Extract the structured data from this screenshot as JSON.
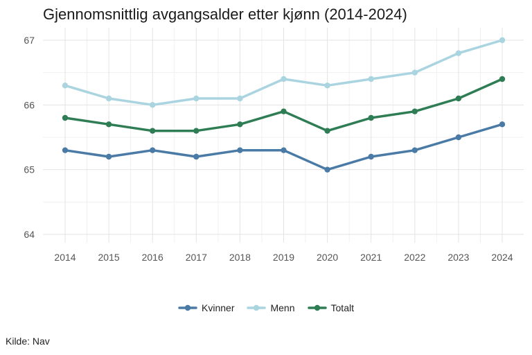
{
  "chart_data": {
    "type": "line",
    "title": "Gjennomsnittlig avgangsalder etter kjønn (2014-2024)",
    "x": [
      2014,
      2015,
      2016,
      2017,
      2018,
      2019,
      2020,
      2021,
      2022,
      2023,
      2024
    ],
    "series": [
      {
        "name": "Kvinner",
        "color": "#4a7aa6",
        "values": [
          65.3,
          65.2,
          65.3,
          65.2,
          65.3,
          65.3,
          65.0,
          65.2,
          65.3,
          65.5,
          65.7
        ]
      },
      {
        "name": "Menn",
        "color": "#a9d4e0",
        "values": [
          66.3,
          66.1,
          66.0,
          66.1,
          66.1,
          66.4,
          66.3,
          66.4,
          66.5,
          66.8,
          67.0
        ]
      },
      {
        "name": "Totalt",
        "color": "#2e7d54",
        "values": [
          65.8,
          65.7,
          65.6,
          65.6,
          65.7,
          65.9,
          65.6,
          65.8,
          65.9,
          66.1,
          66.4
        ]
      }
    ],
    "ylim": [
      64,
      67
    ],
    "yticks": [
      64,
      65,
      66,
      67
    ],
    "grid": true,
    "legend_position": "bottom",
    "source": "Kilde: Nav"
  }
}
